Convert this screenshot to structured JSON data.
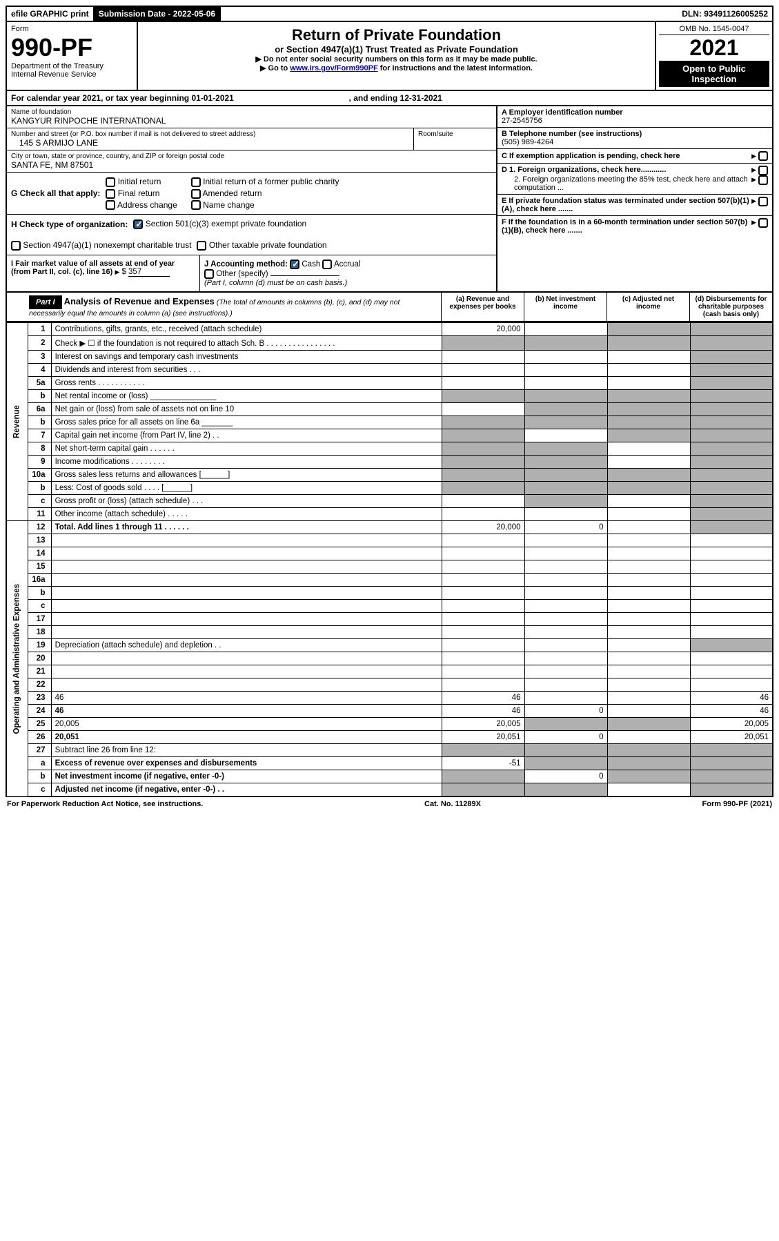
{
  "topbar": {
    "efile": "efile GRAPHIC print",
    "sub_label": "Submission Date - 2022-05-06",
    "dln": "DLN: 93491126005252"
  },
  "header": {
    "form_word": "Form",
    "form_num": "990-PF",
    "dept": "Department of the Treasury",
    "irs": "Internal Revenue Service",
    "title": "Return of Private Foundation",
    "subtitle": "or Section 4947(a)(1) Trust Treated as Private Foundation",
    "instr1": "▶ Do not enter social security numbers on this form as it may be made public.",
    "instr2_pre": "▶ Go to ",
    "instr2_link": "www.irs.gov/Form990PF",
    "instr2_post": " for instructions and the latest information.",
    "omb": "OMB No. 1545-0047",
    "year": "2021",
    "open": "Open to Public Inspection"
  },
  "calendar": {
    "text_pre": "For calendar year 2021, or tax year beginning ",
    "begin": "01-01-2021",
    "text_mid": " , and ending ",
    "end": "12-31-2021"
  },
  "entity": {
    "name_label": "Name of foundation",
    "name": "KANGYUR RINPOCHE INTERNATIONAL",
    "addr_label": "Number and street (or P.O. box number if mail is not delivered to street address)",
    "addr": "145 S ARMIJO LANE",
    "room_label": "Room/suite",
    "city_label": "City or town, state or province, country, and ZIP or foreign postal code",
    "city": "SANTA FE, NM  87501",
    "a_label": "A Employer identification number",
    "a_val": "27-2545756",
    "b_label": "B Telephone number (see instructions)",
    "b_val": "(505) 989-4264",
    "c_label": "C If exemption application is pending, check here",
    "d1_label": "D 1. Foreign organizations, check here............",
    "d2_label": "2. Foreign organizations meeting the 85% test, check here and attach computation ...",
    "e_label": "E If private foundation status was terminated under section 507(b)(1)(A), check here .......",
    "f_label": "F If the foundation is in a 60-month termination under section 507(b)(1)(B), check here .......",
    "g_label": "G Check all that apply:",
    "g_opts": [
      "Initial return",
      "Final return",
      "Address change",
      "Initial return of a former public charity",
      "Amended return",
      "Name change"
    ],
    "h_label": "H Check type of organization:",
    "h_opt1": "Section 501(c)(3) exempt private foundation",
    "h_opt2": "Section 4947(a)(1) nonexempt charitable trust",
    "h_opt3": "Other taxable private foundation",
    "i_label": "I Fair market value of all assets at end of year (from Part II, col. (c), line 16)",
    "i_val": "357",
    "j_label": "J Accounting method:",
    "j_cash": "Cash",
    "j_accrual": "Accrual",
    "j_other": "Other (specify)",
    "j_note": "(Part I, column (d) must be on cash basis.)"
  },
  "part1": {
    "label": "Part I",
    "title": "Analysis of Revenue and Expenses",
    "note": "(The total of amounts in columns (b), (c), and (d) may not necessarily equal the amounts in column (a) (see instructions).)",
    "col_a": "(a) Revenue and expenses per books",
    "col_b": "(b) Net investment income",
    "col_c": "(c) Adjusted net income",
    "col_d": "(d) Disbursements for charitable purposes (cash basis only)"
  },
  "sidelabels": {
    "rev": "Revenue",
    "exp": "Operating and Administrative Expenses"
  },
  "rows": [
    {
      "n": "1",
      "d": "Contributions, gifts, grants, etc., received (attach schedule)",
      "a": "20,000",
      "b": "",
      "c_shade": true,
      "d_shade": true
    },
    {
      "n": "2",
      "d": "Check ▶ ☐ if the foundation is not required to attach Sch. B   .  .  .  .  .  .  .  .  .  .  .  .  .  .  .  .",
      "a_shade": true,
      "b_shade": true,
      "c_shade": true,
      "d_shade": true
    },
    {
      "n": "3",
      "d": "Interest on savings and temporary cash investments",
      "a": "",
      "b": "",
      "c": "",
      "d_shade": true
    },
    {
      "n": "4",
      "d": "Dividends and interest from securities   .   .   .",
      "a": "",
      "b": "",
      "c": "",
      "d_shade": true
    },
    {
      "n": "5a",
      "d": "Gross rents   .   .   .   .   .   .   .   .   .   .   .",
      "a": "",
      "b": "",
      "c": "",
      "d_shade": true
    },
    {
      "n": "b",
      "d": "Net rental income or (loss)  _______________",
      "a_shade": true,
      "b_shade": true,
      "c_shade": true,
      "d_shade": true
    },
    {
      "n": "6a",
      "d": "Net gain or (loss) from sale of assets not on line 10",
      "a": "",
      "b_shade": true,
      "c_shade": true,
      "d_shade": true
    },
    {
      "n": "b",
      "d": "Gross sales price for all assets on line 6a _______",
      "a_shade": true,
      "b_shade": true,
      "c_shade": true,
      "d_shade": true
    },
    {
      "n": "7",
      "d": "Capital gain net income (from Part IV, line 2)   .   .",
      "a_shade": true,
      "b": "",
      "c_shade": true,
      "d_shade": true
    },
    {
      "n": "8",
      "d": "Net short-term capital gain   .   .   .   .   .   .",
      "a_shade": true,
      "b_shade": true,
      "c": "",
      "d_shade": true
    },
    {
      "n": "9",
      "d": "Income modifications   .   .   .   .   .   .   .   .",
      "a_shade": true,
      "b_shade": true,
      "c": "",
      "d_shade": true
    },
    {
      "n": "10a",
      "d": "Gross sales less returns and allowances  [______]",
      "a_shade": true,
      "b_shade": true,
      "c_shade": true,
      "d_shade": true
    },
    {
      "n": "b",
      "d": "Less: Cost of goods sold   .   .   .   .  [______]",
      "a_shade": true,
      "b_shade": true,
      "c_shade": true,
      "d_shade": true
    },
    {
      "n": "c",
      "d": "Gross profit or (loss) (attach schedule)   .   .   .",
      "a": "",
      "b_shade": true,
      "c": "",
      "d_shade": true
    },
    {
      "n": "11",
      "d": "Other income (attach schedule)   .   .   .   .   .",
      "a": "",
      "b": "",
      "c": "",
      "d_shade": true
    },
    {
      "n": "12",
      "d": "Total. Add lines 1 through 11   .   .   .   .   .   .",
      "bold": true,
      "a": "20,000",
      "b": "0",
      "c": "",
      "d_shade": true
    },
    {
      "n": "13",
      "d": "",
      "a": "",
      "b": "",
      "c": ""
    },
    {
      "n": "14",
      "d": "",
      "a": "",
      "b": "",
      "c": ""
    },
    {
      "n": "15",
      "d": "",
      "a": "",
      "b": "",
      "c": ""
    },
    {
      "n": "16a",
      "d": "",
      "a": "",
      "b": "",
      "c": ""
    },
    {
      "n": "b",
      "d": "",
      "a": "",
      "b": "",
      "c": ""
    },
    {
      "n": "c",
      "d": "",
      "a": "",
      "b": "",
      "c": ""
    },
    {
      "n": "17",
      "d": "",
      "a": "",
      "b": "",
      "c": ""
    },
    {
      "n": "18",
      "d": "",
      "a": "",
      "b": "",
      "c": ""
    },
    {
      "n": "19",
      "d": "Depreciation (attach schedule) and depletion   .   .",
      "a": "",
      "b": "",
      "c": "",
      "d_shade": true
    },
    {
      "n": "20",
      "d": "",
      "a": "",
      "b": "",
      "c": ""
    },
    {
      "n": "21",
      "d": "",
      "a": "",
      "b": "",
      "c": ""
    },
    {
      "n": "22",
      "d": "",
      "a": "",
      "b": "",
      "c": ""
    },
    {
      "n": "23",
      "d": "46",
      "a": "46",
      "b": "",
      "c": ""
    },
    {
      "n": "24",
      "d": "46",
      "bold": true,
      "a": "46",
      "b": "0",
      "c": ""
    },
    {
      "n": "25",
      "d": "20,005",
      "a": "20,005",
      "b_shade": true,
      "c_shade": true
    },
    {
      "n": "26",
      "d": "20,051",
      "bold": true,
      "a": "20,051",
      "b": "0",
      "c": ""
    },
    {
      "n": "27",
      "d": "Subtract line 26 from line 12:",
      "a_shade": true,
      "b_shade": true,
      "c_shade": true,
      "d_shade": true
    },
    {
      "n": "a",
      "d": "Excess of revenue over expenses and disbursements",
      "bold": true,
      "a": "-51",
      "b_shade": true,
      "c_shade": true,
      "d_shade": true
    },
    {
      "n": "b",
      "d": "Net investment income (if negative, enter -0-)",
      "bold": true,
      "a_shade": true,
      "b": "0",
      "c_shade": true,
      "d_shade": true
    },
    {
      "n": "c",
      "d": "Adjusted net income (if negative, enter -0-)   .   .",
      "bold": true,
      "a_shade": true,
      "b_shade": true,
      "c": "",
      "d_shade": true
    }
  ],
  "footer": {
    "left": "For Paperwork Reduction Act Notice, see instructions.",
    "mid": "Cat. No. 11289X",
    "right": "Form 990-PF (2021)"
  },
  "colors": {
    "shade": "#b0b0b0",
    "link": "#0000cc",
    "check": "#2a6496"
  }
}
